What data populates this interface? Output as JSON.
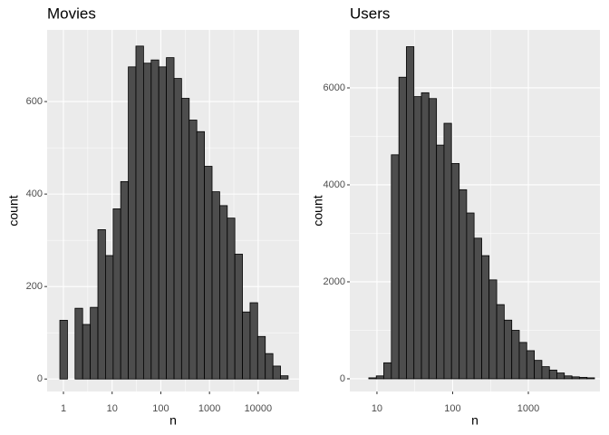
{
  "chart_data": [
    {
      "type": "histogram",
      "title": "Movies",
      "x_label": "n",
      "y_label": "count",
      "log_x": true,
      "grid": true,
      "color": "#4d4d4d",
      "bins": [
        0.843,
        1.21,
        1.73,
        2.48,
        3.56,
        5.1,
        7.31,
        10.5,
        15.0,
        21.5,
        30.8,
        44.2,
        63.4,
        90.8,
        130,
        187,
        267,
        383,
        549,
        787,
        1130,
        1620,
        2320,
        3320,
        4760,
        6820,
        9770,
        14000,
        20100,
        28800,
        41200
      ],
      "values": [
        127,
        0,
        153,
        118,
        155,
        323,
        267,
        368,
        427,
        675,
        720,
        683,
        690,
        675,
        695,
        650,
        607,
        560,
        535,
        460,
        405,
        375,
        348,
        270,
        145,
        165,
        92,
        55,
        28,
        7
      ],
      "xlim": [
        0.462,
        69200
      ],
      "ylim": [
        -27,
        755
      ],
      "xticks": [
        1,
        10,
        100,
        1000,
        10000
      ],
      "yticks": [
        0,
        200,
        400,
        600
      ]
    },
    {
      "type": "histogram",
      "title": "Users",
      "x_label": "n",
      "y_label": "count",
      "log_x": true,
      "grid": true,
      "color": "#4d4d4d",
      "bins": [
        7.8,
        9.8,
        12.3,
        15.5,
        19.5,
        24.5,
        30.8,
        38.7,
        48.6,
        61.2,
        76.9,
        96.6,
        122,
        153,
        192,
        242,
        303,
        382,
        480,
        604,
        759,
        953,
        1200,
        1510,
        1900,
        2380,
        2990,
        3770,
        4730,
        5960,
        7480
      ],
      "values": [
        20,
        60,
        330,
        4620,
        6220,
        6850,
        5820,
        5900,
        5780,
        4820,
        5270,
        4440,
        3900,
        3420,
        2900,
        2540,
        2040,
        1530,
        1210,
        1000,
        750,
        580,
        380,
        250,
        180,
        120,
        60,
        40,
        30,
        20
      ],
      "xlim": [
        4.38,
        8830
      ],
      "ylim": [
        -262,
        7196
      ],
      "xticks": [
        10,
        100,
        1000
      ],
      "yticks": [
        0,
        2000,
        4000,
        6000
      ]
    }
  ]
}
